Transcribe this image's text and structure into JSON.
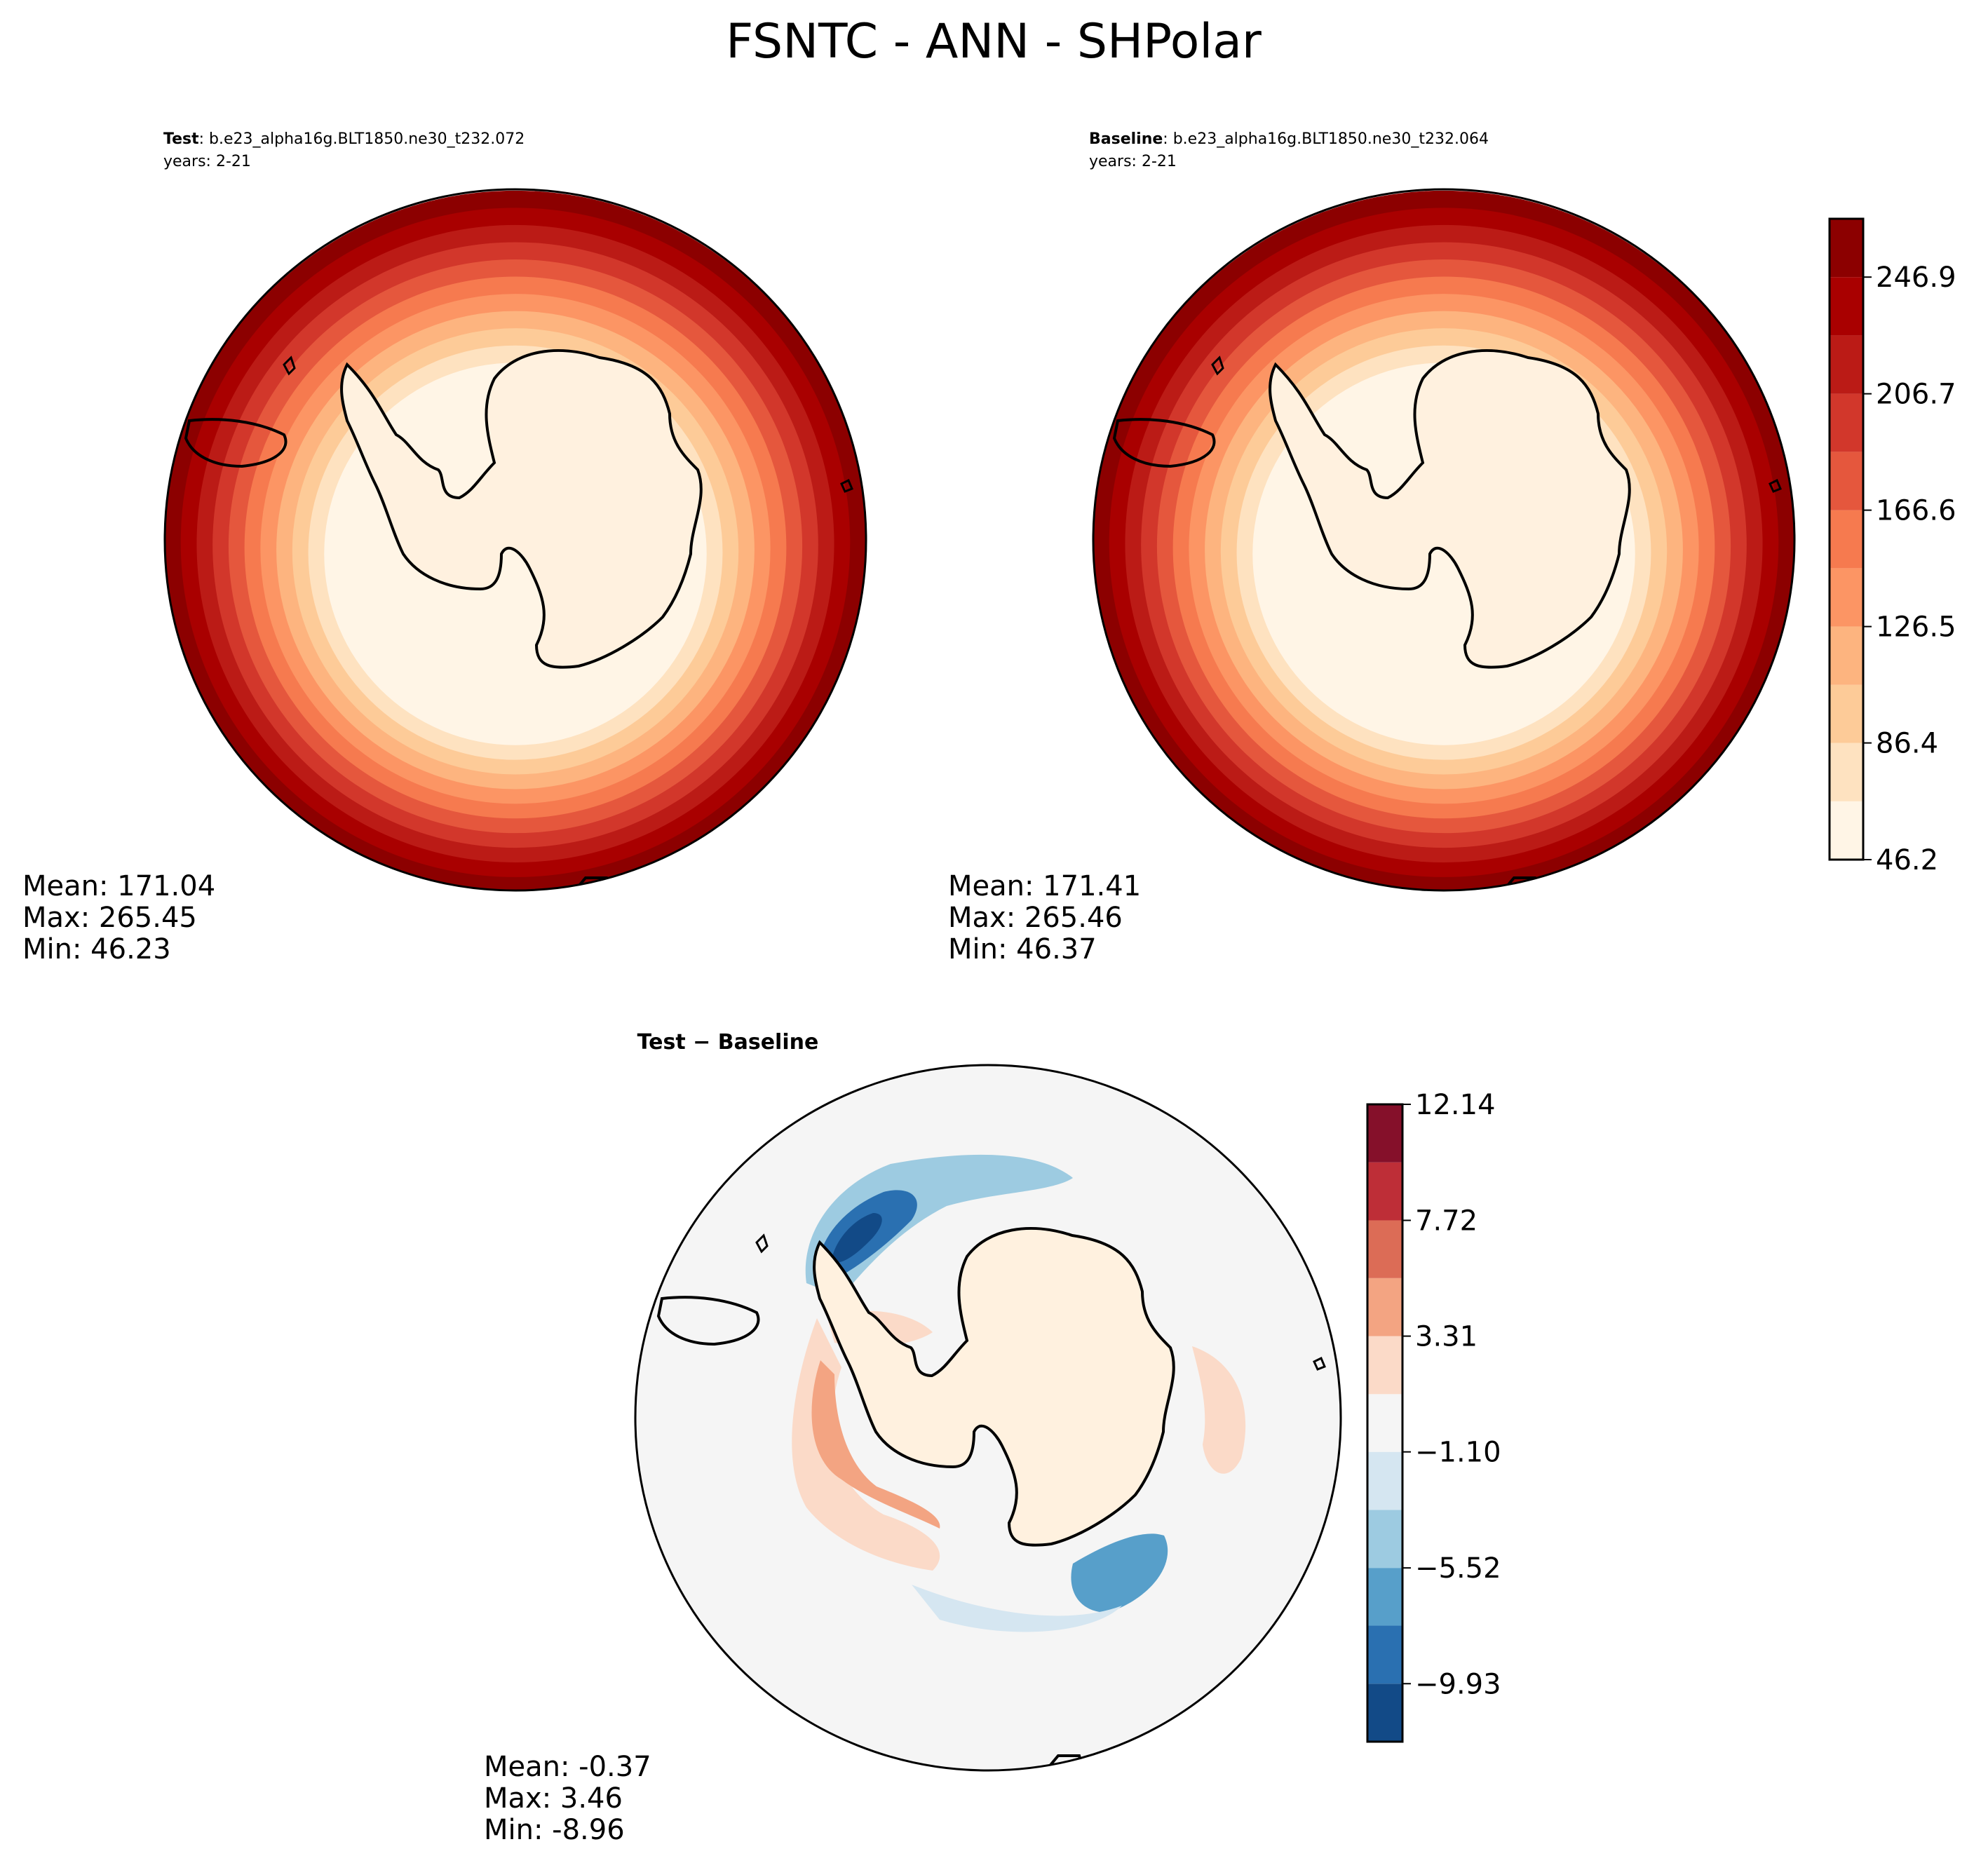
{
  "title": "FSNTC - ANN - SHPolar",
  "chart_data": [
    {
      "type": "filled_contour_polar_map",
      "panel": "test",
      "label_bold": "Test",
      "label_rest": ": b.e23_alpha16g.BLT1850.ne30_t232.072",
      "years": "years: 2-21",
      "stats": {
        "mean": "Mean: 171.04",
        "max": "Max: 265.45",
        "min": "Min: 46.23"
      },
      "bands_from_pole": [
        46.2,
        66.3,
        86.4,
        106.4,
        126.5,
        146.6,
        166.6,
        186.7,
        206.7,
        226.8,
        246.9
      ]
    },
    {
      "type": "filled_contour_polar_map",
      "panel": "baseline",
      "label_bold": "Baseline",
      "label_rest": ": b.e23_alpha16g.BLT1850.ne30_t232.064",
      "years": "years: 2-21",
      "stats": {
        "mean": "Mean: 171.41",
        "max": "Max: 265.46",
        "min": "Min: 46.37"
      },
      "bands_from_pole": [
        46.2,
        66.3,
        86.4,
        106.4,
        126.5,
        146.6,
        166.6,
        186.7,
        206.7,
        226.8,
        246.9
      ]
    },
    {
      "type": "filled_contour_polar_map",
      "panel": "difference",
      "label": "Test − Baseline",
      "stats": {
        "mean": "Mean: -0.37",
        "max": "Max:  3.46",
        "min": "Min: -8.96"
      },
      "anomalies": [
        {
          "level": -9.93,
          "region": "pacific-sector"
        },
        {
          "level": -5.52,
          "region": "pacific-sector"
        },
        {
          "level": -3.31,
          "region": "ross-sea"
        },
        {
          "level": -1.1,
          "region": "southern-ring"
        },
        {
          "level": 3.31,
          "region": "weddell-arc"
        },
        {
          "level": 5.52,
          "region": "weddell-arc"
        }
      ]
    }
  ],
  "colorbars": [
    {
      "panel": "test-baseline",
      "min": 46.2,
      "max": 267.0,
      "levels": [
        46.2,
        66.3,
        86.4,
        106.4,
        126.5,
        146.6,
        166.6,
        186.7,
        206.7,
        226.8,
        246.9,
        267.0
      ],
      "tick_values": [
        46.2,
        86.4,
        126.5,
        166.6,
        206.7,
        246.9
      ],
      "tick_labels": [
        "46.2",
        "86.4",
        "126.5",
        "166.6",
        "206.7",
        "246.9"
      ],
      "colors": [
        "#fff5e6",
        "#fee2c0",
        "#fdcb98",
        "#fdb47f",
        "#fc9564",
        "#f67a4f",
        "#e5573d",
        "#d2372b",
        "#bb1b16",
        "#a90000",
        "#8c0000"
      ]
    },
    {
      "panel": "difference",
      "min": -12.14,
      "max": 12.14,
      "levels": [
        -12.14,
        -9.93,
        -7.72,
        -5.52,
        -3.31,
        -1.1,
        1.1,
        3.31,
        5.52,
        7.72,
        9.93,
        12.14
      ],
      "tick_values": [
        -9.93,
        -5.52,
        -1.1,
        3.31,
        7.72,
        12.14
      ],
      "tick_labels": [
        "−9.93",
        "−5.52",
        "−1.10",
        "3.31",
        "7.72",
        "12.14"
      ],
      "colors": [
        "#124a87",
        "#2a70b1",
        "#579fca",
        "#9dcbe1",
        "#d5e6f1",
        "#f5f5f5",
        "#fbdac8",
        "#f3a482",
        "#dc6c56",
        "#be2e37",
        "#85102a"
      ]
    }
  ]
}
